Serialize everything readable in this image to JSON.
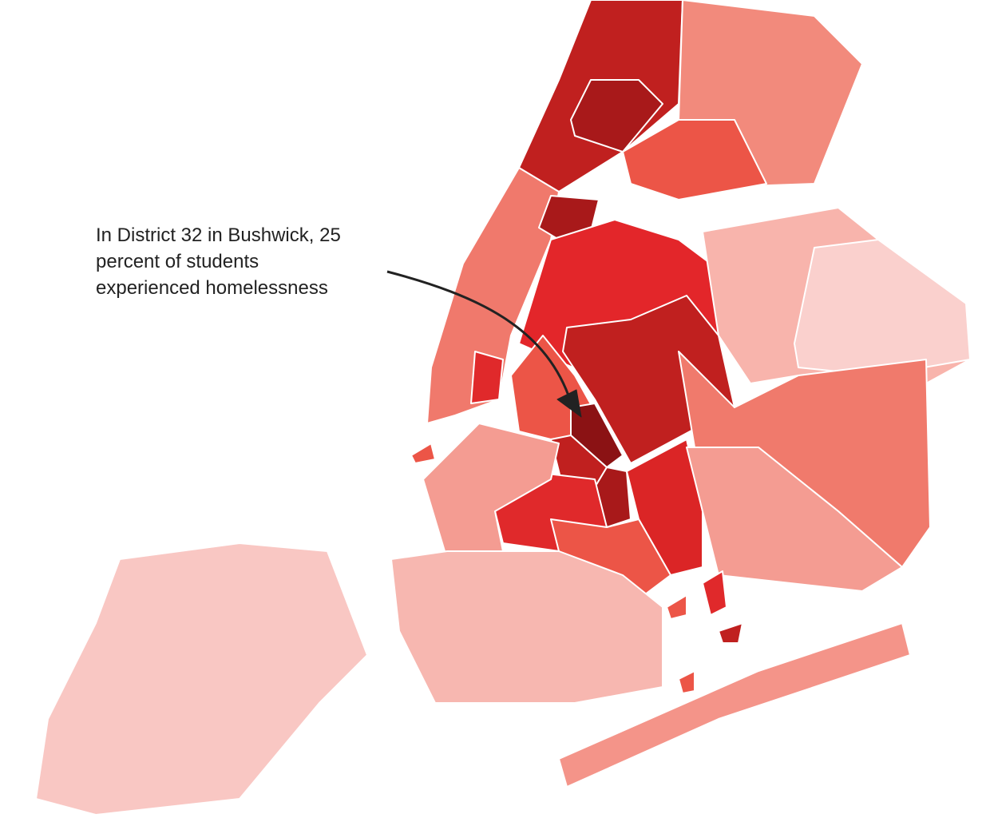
{
  "annotation": {
    "lines": [
      "In District 32 in Bushwick, 25",
      "percent of students",
      "experienced homelessness"
    ]
  }
}
